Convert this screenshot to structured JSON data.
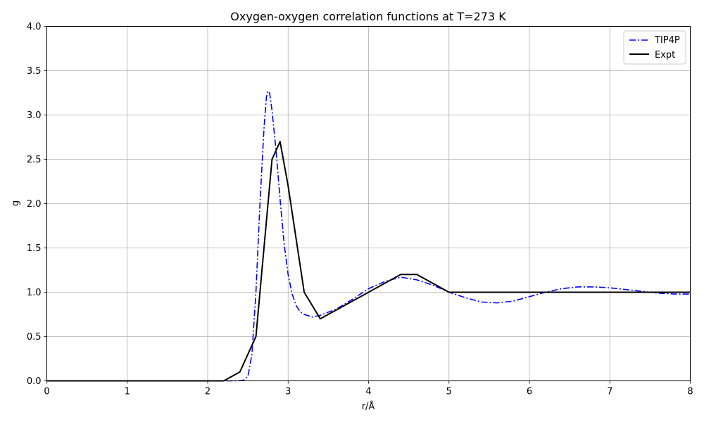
{
  "chart_data": {
    "type": "line",
    "title": "Oxygen-oxygen correlation functions at T=273 K",
    "xlabel": "r/Å",
    "ylabel": "g",
    "xlim": [
      0,
      8
    ],
    "ylim": [
      0,
      4.0
    ],
    "xticks": [
      "0",
      "1",
      "2",
      "3",
      "4",
      "5",
      "6",
      "7",
      "8"
    ],
    "yticks": [
      "0.0",
      "0.5",
      "1.0",
      "1.5",
      "2.0",
      "2.5",
      "3.0",
      "3.5",
      "4.0"
    ],
    "grid": true,
    "legend_position": "top-right",
    "series": [
      {
        "name": "TIP4P",
        "color": "#0000ff",
        "style": "dashdot",
        "x": [
          0,
          2.0,
          2.3,
          2.4,
          2.45,
          2.5,
          2.55,
          2.6,
          2.65,
          2.7,
          2.73,
          2.75,
          2.77,
          2.8,
          2.85,
          2.9,
          2.95,
          3.0,
          3.05,
          3.1,
          3.15,
          3.2,
          3.3,
          3.4,
          3.6,
          3.8,
          4.0,
          4.2,
          4.4,
          4.6,
          4.8,
          5.0,
          5.2,
          5.4,
          5.6,
          5.8,
          6.0,
          6.2,
          6.4,
          6.6,
          6.8,
          7.0,
          7.2,
          7.4,
          7.6,
          7.8,
          8.0
        ],
        "y": [
          0,
          0,
          0,
          0.002,
          0.01,
          0.05,
          0.3,
          1.0,
          2.0,
          2.85,
          3.2,
          3.27,
          3.25,
          3.05,
          2.6,
          2.05,
          1.55,
          1.2,
          0.98,
          0.85,
          0.78,
          0.75,
          0.72,
          0.74,
          0.81,
          0.92,
          1.04,
          1.12,
          1.17,
          1.14,
          1.08,
          1.0,
          0.94,
          0.89,
          0.88,
          0.9,
          0.95,
          1.0,
          1.04,
          1.06,
          1.06,
          1.05,
          1.03,
          1.01,
          0.99,
          0.98,
          0.98
        ]
      },
      {
        "name": "Expt",
        "color": "#000000",
        "style": "solid",
        "x": [
          0,
          2.2,
          2.4,
          2.6,
          2.8,
          2.9,
          3.0,
          3.2,
          3.4,
          4.0,
          4.4,
          4.6,
          5.0,
          8.0
        ],
        "y": [
          0,
          0,
          0.1,
          0.5,
          2.5,
          2.7,
          2.2,
          1.0,
          0.7,
          1.0,
          1.2,
          1.2,
          1.0,
          1.0
        ]
      }
    ]
  }
}
